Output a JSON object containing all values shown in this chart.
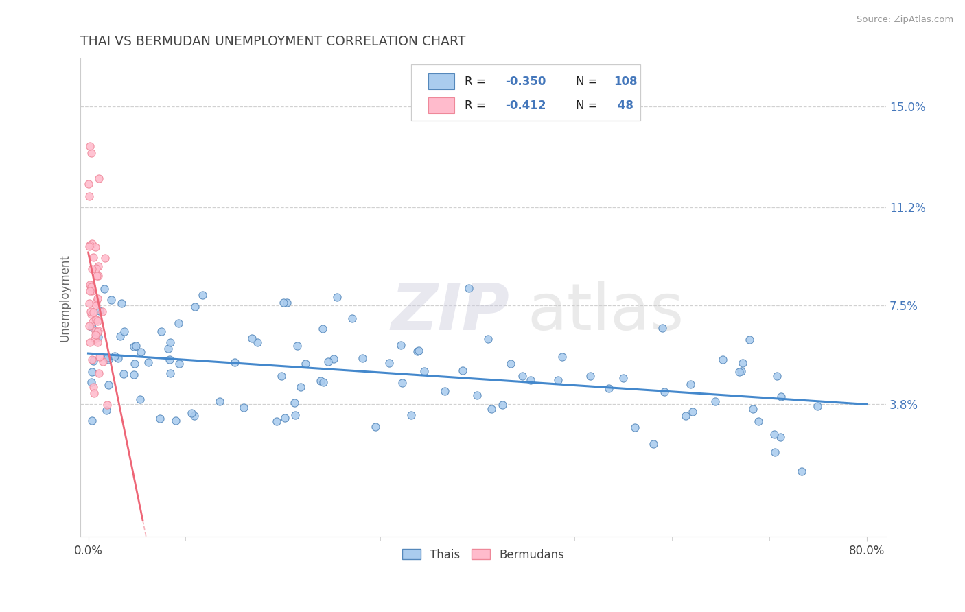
{
  "title": "THAI VS BERMUDAN UNEMPLOYMENT CORRELATION CHART",
  "source": "Source: ZipAtlas.com",
  "ytick_vals": [
    0.0,
    0.038,
    0.075,
    0.112,
    0.15
  ],
  "ytick_labels": [
    "",
    "3.8%",
    "7.5%",
    "11.2%",
    "15.0%"
  ],
  "xtick_vals": [
    0.0,
    0.8
  ],
  "xtick_labels": [
    "0.0%",
    "80.0%"
  ],
  "xlim": [
    -0.008,
    0.82
  ],
  "ylim": [
    -0.012,
    0.168
  ],
  "thai_face_color": "#AACCEE",
  "thai_edge_color": "#5588BB",
  "berm_face_color": "#FFBBCC",
  "berm_edge_color": "#EE8899",
  "thai_line_color": "#4488CC",
  "berm_line_color": "#EE6677",
  "thai_R_str": "-0.350",
  "thai_N_str": "108",
  "berm_R_str": "-0.412",
  "berm_N_str": "48",
  "thai_intercept": 0.057,
  "thai_slope": -0.024,
  "berm_intercept": 0.095,
  "berm_slope": -1.8,
  "ylabel": "Unemployment",
  "watermark_zip": "ZIP",
  "watermark_atlas": "atlas",
  "watermark_color": "#DDDDEE",
  "grid_color": "#CCCCCC",
  "axis_num_color": "#4477BB",
  "title_color": "#444444",
  "legend_label_thai": "Thais",
  "legend_label_bermudan": "Bermudans"
}
